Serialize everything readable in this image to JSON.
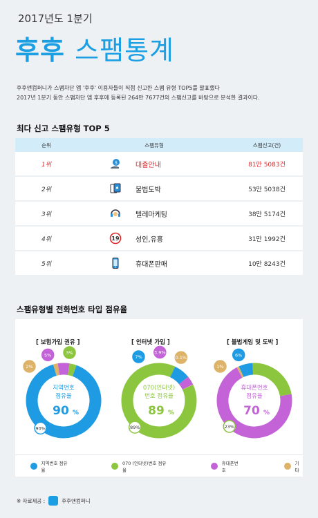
{
  "header": {
    "subtitle": "2017년도 1분기",
    "title_brand": "후후",
    "title_rest": "스팸통계",
    "intro_line1": "후후앤컴퍼니가 스팸차단 앱 '후후' 이용자들이 직접 신고한 스팸 유형 TOP5를 발표했다",
    "intro_line2": "2017년 1분기 동안 스팸차단 앱 후후에 등록된 264만 7677건의  스팸신고를 바탕으로 분석한 결과이다."
  },
  "top5": {
    "title": "최다 신고 스팸유형 TOP 5",
    "headers": [
      "순위",
      "스팸유형",
      "스팸신고(건)"
    ],
    "rows": [
      {
        "rank": "1위",
        "type": "대출안내",
        "count": "81만 5083건",
        "icon": "loan-icon"
      },
      {
        "rank": "2위",
        "type": "불법도박",
        "count": "53만 5038건",
        "icon": "cards-icon"
      },
      {
        "rank": "3위",
        "type": "텔레마케팅",
        "count": "38만 5174건",
        "icon": "headset-icon"
      },
      {
        "rank": "4위",
        "type": "성인,유흥",
        "count": "31만 1992건",
        "icon": "adult-19-icon"
      },
      {
        "rank": "5위",
        "type": "휴대폰판매",
        "count": "10만 8243건",
        "icon": "phone-icon"
      }
    ]
  },
  "share": {
    "title": "스팸유형별 전화번호 타입 점유율"
  },
  "chart_data": [
    {
      "type": "pie",
      "title": "[ 보험가입 권유 ]",
      "center_label_1": "지역번호",
      "center_label_2": "점유율",
      "center_value": "90",
      "center_unit": "%",
      "labels": [
        "지역번호 점유율",
        "기타",
        "휴대폰번호",
        "070 (인터넷)번호 점유율"
      ],
      "values": [
        90,
        2,
        5,
        3
      ],
      "value_labels": [
        "90%",
        "2%",
        "5%",
        "3%"
      ]
    },
    {
      "type": "pie",
      "title": "[ 인터넷 가입 ]",
      "center_label_1": "070(인터넷)",
      "center_label_2": "번호 점유율",
      "center_value": "89",
      "center_unit": "%",
      "labels": [
        "070 (인터넷)번호 점유율",
        "지역번호 점유율",
        "휴대폰번호",
        "기타"
      ],
      "values": [
        89,
        7,
        3.9,
        0.1
      ],
      "value_labels": [
        "89%",
        "7%",
        "3.9%",
        "0.1%"
      ]
    },
    {
      "type": "pie",
      "title": "[ 불법게임 및 도박 ]",
      "center_label_1": "휴대폰번호",
      "center_label_2": "점유율",
      "center_value": "70",
      "center_unit": "%",
      "labels": [
        "휴대폰번호",
        "기타",
        "지역번호 점유율",
        "070 (인터넷)번호 점유율"
      ],
      "values": [
        70,
        1,
        6,
        23
      ],
      "value_labels": [
        "70%",
        "1%",
        "6%",
        "23%"
      ]
    }
  ],
  "legend": [
    {
      "label": "지역번호 점유율",
      "color": "#1e9be3"
    },
    {
      "label": "070 (인터넷)번호 점유율",
      "color": "#8cc63f"
    },
    {
      "label": "휴대폰번호",
      "color": "#c462d8"
    },
    {
      "label": "기타",
      "color": "#ddb36a"
    }
  ],
  "credit": {
    "prefix": "※ 자료제공 :",
    "company": "후후앤컴퍼니"
  }
}
